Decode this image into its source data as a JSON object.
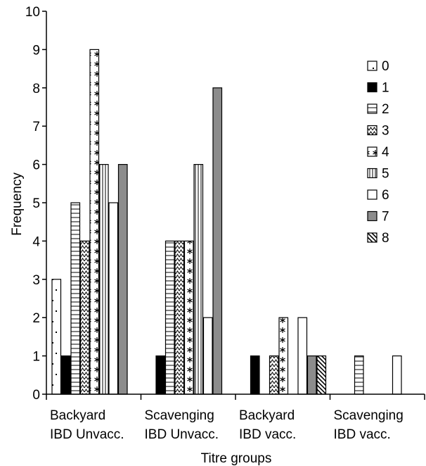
{
  "chart_data": {
    "type": "bar",
    "title": "",
    "xlabel": "Titre groups",
    "ylabel": "Frequency",
    "ylim": [
      0,
      10
    ],
    "yticks": [
      "0",
      "1",
      "2",
      "3",
      "4",
      "5",
      "6",
      "7",
      "8",
      "9",
      "10"
    ],
    "grid": false,
    "legend_position": "right",
    "categories": [
      {
        "line1": "Backyard",
        "line2": "IBD Unvacc."
      },
      {
        "line1": "Scavenging",
        "line2": "IBD Unvacc."
      },
      {
        "line1": "Backyard",
        "line2": "IBD vacc."
      },
      {
        "line1": "Scavenging",
        "line2": "IBD vacc."
      }
    ],
    "series": [
      {
        "name": "0",
        "pattern": "dots",
        "values": [
          3,
          0,
          0,
          0
        ]
      },
      {
        "name": "1",
        "pattern": "solid-black",
        "values": [
          1,
          1,
          1,
          0
        ]
      },
      {
        "name": "2",
        "pattern": "horizontal-lines",
        "values": [
          5,
          4,
          0,
          1
        ]
      },
      {
        "name": "3",
        "pattern": "zigzag",
        "values": [
          4,
          4,
          1,
          0
        ]
      },
      {
        "name": "4",
        "pattern": "asterisks",
        "values": [
          9,
          4,
          2,
          0
        ]
      },
      {
        "name": "5",
        "pattern": "vertical-lines",
        "values": [
          6,
          6,
          0,
          0
        ]
      },
      {
        "name": "6",
        "pattern": "white",
        "values": [
          5,
          2,
          2,
          1
        ]
      },
      {
        "name": "7",
        "pattern": "solid-gray",
        "values": [
          6,
          8,
          1,
          0
        ]
      },
      {
        "name": "8",
        "pattern": "diagonal",
        "values": [
          0,
          0,
          1,
          0
        ]
      }
    ]
  }
}
